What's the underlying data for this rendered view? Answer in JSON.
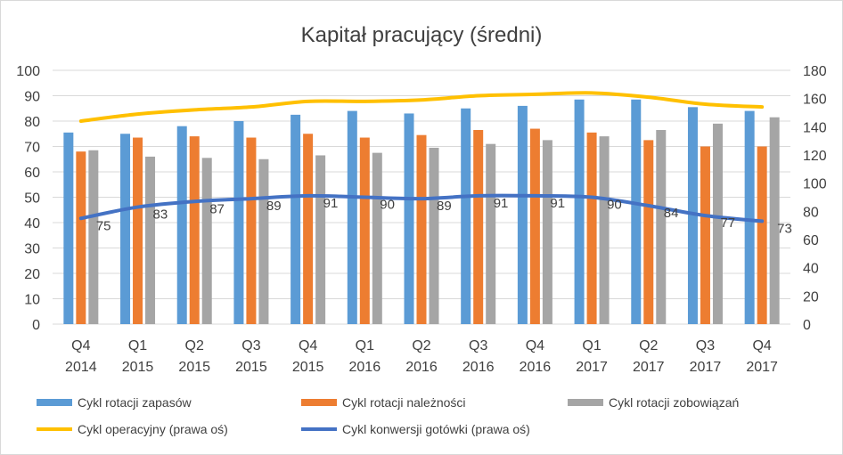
{
  "chart_data": {
    "type": "bar",
    "title": "Kapitał pracujący (średni)",
    "categories": [
      [
        "Q4",
        "2014"
      ],
      [
        "Q1",
        "2015"
      ],
      [
        "Q2",
        "2015"
      ],
      [
        "Q3",
        "2015"
      ],
      [
        "Q4",
        "2015"
      ],
      [
        "Q1",
        "2016"
      ],
      [
        "Q2",
        "2016"
      ],
      [
        "Q3",
        "2016"
      ],
      [
        "Q4",
        "2016"
      ],
      [
        "Q1",
        "2017"
      ],
      [
        "Q2",
        "2017"
      ],
      [
        "Q3",
        "2017"
      ],
      [
        "Q4",
        "2017"
      ]
    ],
    "ylim": [
      0,
      100
    ],
    "yticks": [
      0,
      10,
      20,
      30,
      40,
      50,
      60,
      70,
      80,
      90,
      100
    ],
    "y2lim": [
      0,
      180
    ],
    "y2ticks": [
      0,
      20,
      40,
      60,
      80,
      100,
      120,
      140,
      160,
      180
    ],
    "grid": true,
    "legend_position": "bottom",
    "bar_series": [
      {
        "name": "Cykl rotacji zapasów",
        "color": "#5b9bd5",
        "values": [
          75.5,
          75,
          78,
          80,
          82.5,
          84,
          83,
          85,
          86,
          88.5,
          88.5,
          85.5,
          84
        ]
      },
      {
        "name": "Cykl rotacji należności",
        "color": "#ed7d31",
        "values": [
          68,
          73.5,
          74,
          73.5,
          75,
          73.5,
          74.5,
          76.5,
          77,
          75.5,
          72.5,
          70,
          70
        ]
      },
      {
        "name": "Cykl rotacji zobowiązań",
        "color": "#a5a5a5",
        "values": [
          68.5,
          66,
          65.5,
          65,
          66.5,
          67.5,
          69.5,
          71,
          72.5,
          74,
          76.5,
          79,
          81.5
        ]
      }
    ],
    "line_series": [
      {
        "name": "Cykl operacyjny (prawa oś)",
        "color": "#ffc000",
        "axis": "right",
        "values": [
          144,
          149,
          152,
          154,
          158,
          158,
          159,
          162,
          163,
          164,
          161,
          156,
          154
        ],
        "labels": false
      },
      {
        "name": "Cykl konwersji gotówki (prawa oś)",
        "color": "#4472c4",
        "axis": "right",
        "values": [
          75,
          83,
          87,
          89,
          91,
          90,
          89,
          91,
          91,
          90,
          84,
          77,
          73
        ],
        "labels": true
      }
    ]
  }
}
